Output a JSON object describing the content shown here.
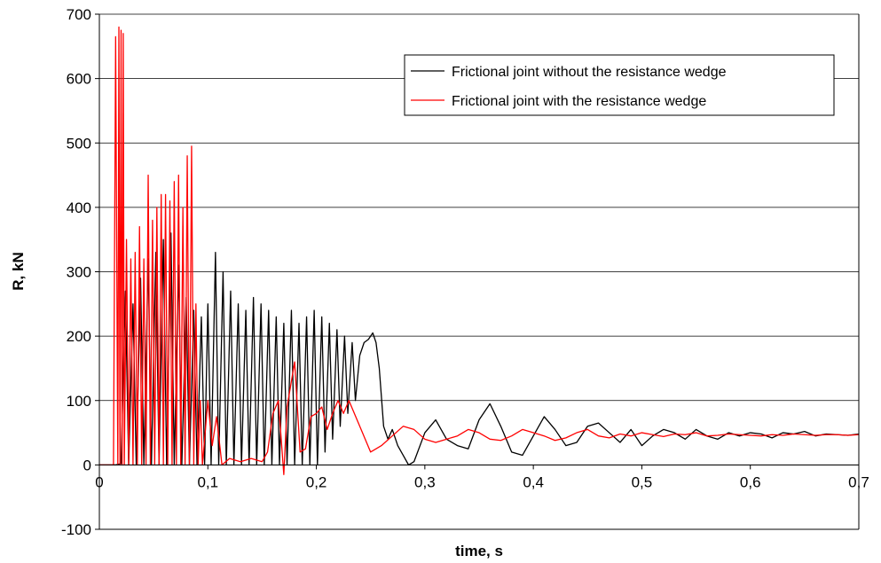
{
  "chart_data": {
    "type": "line",
    "title": "",
    "xlabel": "time, s",
    "ylabel": "R, kN",
    "xlim": [
      0,
      0.7
    ],
    "ylim": [
      -100,
      700
    ],
    "x_ticks": [
      0,
      0.1,
      0.2,
      0.3,
      0.4,
      0.5,
      0.6,
      0.7
    ],
    "x_tick_labels": [
      "0",
      "0,1",
      "0,2",
      "0,3",
      "0,4",
      "0,5",
      "0,6",
      "0,7"
    ],
    "y_ticks": [
      -100,
      0,
      100,
      200,
      300,
      400,
      500,
      600,
      700
    ],
    "y_tick_labels": [
      "-100",
      "0",
      "100",
      "200",
      "300",
      "400",
      "500",
      "600",
      "700"
    ],
    "grid": "horizontal major gridlines",
    "legend_position": "top-right",
    "series": [
      {
        "name": "Frictional joint without the resistance wedge",
        "color": "#000000",
        "x": [
          0,
          0.015,
          0.02,
          0.024,
          0.027,
          0.031,
          0.034,
          0.038,
          0.041,
          0.045,
          0.048,
          0.052,
          0.055,
          0.059,
          0.062,
          0.066,
          0.069,
          0.073,
          0.076,
          0.08,
          0.083,
          0.087,
          0.09,
          0.094,
          0.097,
          0.1,
          0.103,
          0.107,
          0.11,
          0.114,
          0.117,
          0.121,
          0.124,
          0.128,
          0.131,
          0.135,
          0.138,
          0.142,
          0.145,
          0.149,
          0.152,
          0.156,
          0.159,
          0.163,
          0.166,
          0.17,
          0.173,
          0.177,
          0.18,
          0.184,
          0.187,
          0.191,
          0.194,
          0.198,
          0.201,
          0.205,
          0.208,
          0.212,
          0.215,
          0.219,
          0.222,
          0.226,
          0.229,
          0.233,
          0.236,
          0.24,
          0.244,
          0.248,
          0.252,
          0.255,
          0.258,
          0.262,
          0.266,
          0.27,
          0.275,
          0.28,
          0.285,
          0.29,
          0.3,
          0.31,
          0.32,
          0.33,
          0.34,
          0.35,
          0.36,
          0.37,
          0.38,
          0.39,
          0.4,
          0.41,
          0.42,
          0.43,
          0.44,
          0.45,
          0.46,
          0.47,
          0.48,
          0.49,
          0.5,
          0.51,
          0.52,
          0.53,
          0.54,
          0.55,
          0.56,
          0.57,
          0.58,
          0.59,
          0.6,
          0.61,
          0.62,
          0.63,
          0.64,
          0.65,
          0.66,
          0.67,
          0.68,
          0.69,
          0.7
        ],
        "y": [
          0,
          0,
          2,
          270,
          0,
          250,
          0,
          290,
          0,
          320,
          0,
          330,
          0,
          350,
          0,
          360,
          0,
          310,
          0,
          260,
          0,
          240,
          0,
          230,
          0,
          250,
          0,
          330,
          0,
          300,
          0,
          270,
          0,
          250,
          0,
          240,
          0,
          260,
          0,
          250,
          0,
          240,
          0,
          230,
          0,
          220,
          0,
          240,
          0,
          220,
          0,
          230,
          0,
          240,
          0,
          230,
          20,
          220,
          40,
          210,
          60,
          200,
          80,
          190,
          100,
          170,
          190,
          195,
          205,
          190,
          150,
          60,
          40,
          55,
          30,
          15,
          0,
          5,
          50,
          70,
          40,
          30,
          25,
          70,
          95,
          60,
          20,
          15,
          45,
          75,
          55,
          30,
          35,
          60,
          65,
          50,
          35,
          55,
          30,
          45,
          55,
          50,
          40,
          55,
          45,
          40,
          50,
          45,
          50,
          48,
          42,
          50,
          48,
          52,
          45,
          48,
          47,
          46,
          48
        ]
      },
      {
        "name": "Frictional joint with the resistance wedge",
        "color": "#ff0000",
        "x": [
          0,
          0.013,
          0.015,
          0.017,
          0.018,
          0.019,
          0.02,
          0.021,
          0.022,
          0.023,
          0.025,
          0.027,
          0.029,
          0.031,
          0.033,
          0.035,
          0.037,
          0.039,
          0.041,
          0.043,
          0.045,
          0.047,
          0.049,
          0.051,
          0.053,
          0.055,
          0.057,
          0.059,
          0.061,
          0.063,
          0.065,
          0.067,
          0.069,
          0.071,
          0.073,
          0.075,
          0.077,
          0.079,
          0.081,
          0.083,
          0.085,
          0.087,
          0.089,
          0.091,
          0.093,
          0.095,
          0.1,
          0.104,
          0.108,
          0.113,
          0.12,
          0.13,
          0.14,
          0.15,
          0.155,
          0.16,
          0.165,
          0.17,
          0.173,
          0.176,
          0.18,
          0.185,
          0.19,
          0.195,
          0.2,
          0.205,
          0.21,
          0.215,
          0.22,
          0.225,
          0.23,
          0.24,
          0.25,
          0.26,
          0.27,
          0.28,
          0.29,
          0.3,
          0.31,
          0.32,
          0.33,
          0.34,
          0.35,
          0.36,
          0.37,
          0.38,
          0.39,
          0.4,
          0.41,
          0.42,
          0.43,
          0.44,
          0.45,
          0.46,
          0.47,
          0.48,
          0.49,
          0.5,
          0.51,
          0.52,
          0.53,
          0.54,
          0.55,
          0.56,
          0.57,
          0.58,
          0.59,
          0.6,
          0.61,
          0.62,
          0.63,
          0.64,
          0.65,
          0.66,
          0.67,
          0.68,
          0.69,
          0.7
        ],
        "y": [
          0,
          0,
          665,
          0,
          680,
          0,
          675,
          0,
          670,
          0,
          350,
          0,
          320,
          0,
          330,
          0,
          370,
          0,
          320,
          0,
          450,
          0,
          380,
          0,
          400,
          0,
          420,
          0,
          420,
          0,
          410,
          0,
          440,
          0,
          450,
          0,
          400,
          0,
          480,
          0,
          495,
          0,
          250,
          0,
          100,
          0,
          100,
          30,
          75,
          0,
          10,
          5,
          10,
          5,
          20,
          80,
          100,
          -15,
          90,
          120,
          160,
          20,
          25,
          75,
          80,
          90,
          55,
          80,
          100,
          80,
          100,
          60,
          20,
          30,
          45,
          60,
          55,
          40,
          35,
          40,
          45,
          55,
          50,
          40,
          38,
          45,
          55,
          50,
          45,
          38,
          42,
          50,
          55,
          45,
          42,
          48,
          45,
          50,
          47,
          44,
          48,
          47,
          50,
          45,
          46,
          48,
          47,
          46,
          45,
          47,
          46,
          48,
          47,
          46,
          47,
          47,
          46,
          47
        ]
      }
    ]
  }
}
